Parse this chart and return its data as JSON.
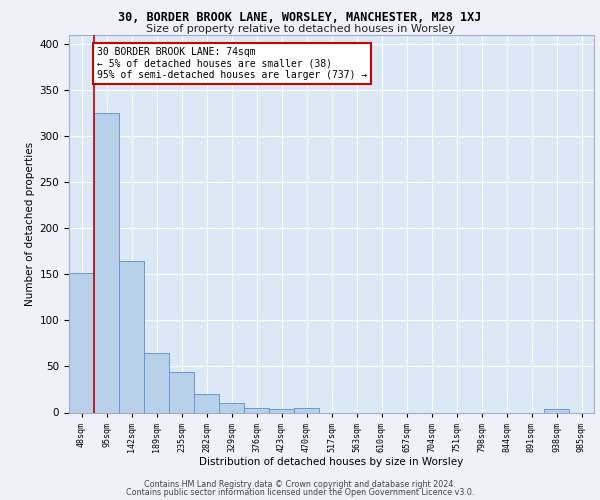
{
  "title_line1": "30, BORDER BROOK LANE, WORSLEY, MANCHESTER, M28 1XJ",
  "title_line2": "Size of property relative to detached houses in Worsley",
  "xlabel": "Distribution of detached houses by size in Worsley",
  "ylabel": "Number of detached properties",
  "footer_line1": "Contains HM Land Registry data © Crown copyright and database right 2024.",
  "footer_line2": "Contains public sector information licensed under the Open Government Licence v3.0.",
  "annotation_line1": "30 BORDER BROOK LANE: 74sqm",
  "annotation_line2": "← 5% of detached houses are smaller (38)",
  "annotation_line3": "95% of semi-detached houses are larger (737) →",
  "bar_categories": [
    "48sqm",
    "95sqm",
    "142sqm",
    "189sqm",
    "235sqm",
    "282sqm",
    "329sqm",
    "376sqm",
    "423sqm",
    "470sqm",
    "517sqm",
    "563sqm",
    "610sqm",
    "657sqm",
    "704sqm",
    "751sqm",
    "798sqm",
    "844sqm",
    "891sqm",
    "938sqm",
    "985sqm"
  ],
  "bar_values": [
    152,
    325,
    165,
    65,
    44,
    20,
    10,
    5,
    4,
    5,
    0,
    0,
    0,
    0,
    0,
    0,
    0,
    0,
    0,
    4,
    0
  ],
  "bar_color": "#b8d0ea",
  "bar_edge_color": "#6699cc",
  "vline_color": "#cc0000",
  "vline_position": 0.5,
  "background_color": "#eef2f8",
  "plot_background": "#dce8f5",
  "grid_color": "#ffffff",
  "annotation_box_color": "#ffffff",
  "annotation_box_edge": "#cc0000",
  "ylim": [
    0,
    410
  ],
  "yticks": [
    0,
    50,
    100,
    150,
    200,
    250,
    300,
    350,
    400
  ],
  "title1_fontsize": 8.5,
  "title2_fontsize": 8.0,
  "ylabel_fontsize": 7.5,
  "xlabel_fontsize": 7.5,
  "ytick_fontsize": 7.5,
  "xtick_fontsize": 6.0,
  "annotation_fontsize": 7.0,
  "footer_fontsize": 5.8
}
